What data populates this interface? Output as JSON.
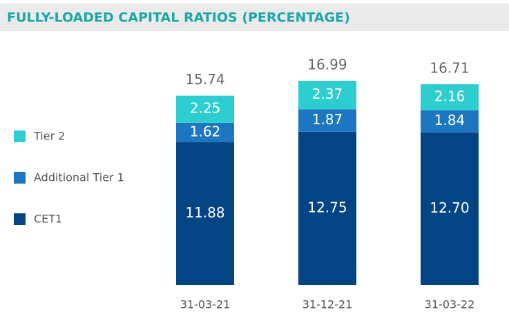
{
  "chart_data": {
    "type": "stacked-bar",
    "title": "FULLY-LOADED CAPITAL RATIOS (PERCENTAGE)",
    "categories": [
      "31-03-21",
      "31-12-21",
      "31-03-22"
    ],
    "series": [
      {
        "name": "CET1",
        "color": "#034484",
        "values": [
          11.88,
          12.75,
          12.7
        ],
        "value_labels": [
          "11.88",
          "12.75",
          "12.70"
        ]
      },
      {
        "name": "Additional Tier 1",
        "color": "#1d77c0",
        "values": [
          1.62,
          1.87,
          1.84
        ]
      },
      {
        "name": "Tier 2",
        "color": "#2ecdd0",
        "values": [
          2.25,
          2.37,
          2.16
        ]
      }
    ],
    "totals": [
      15.74,
      16.99,
      16.71
    ]
  }
}
